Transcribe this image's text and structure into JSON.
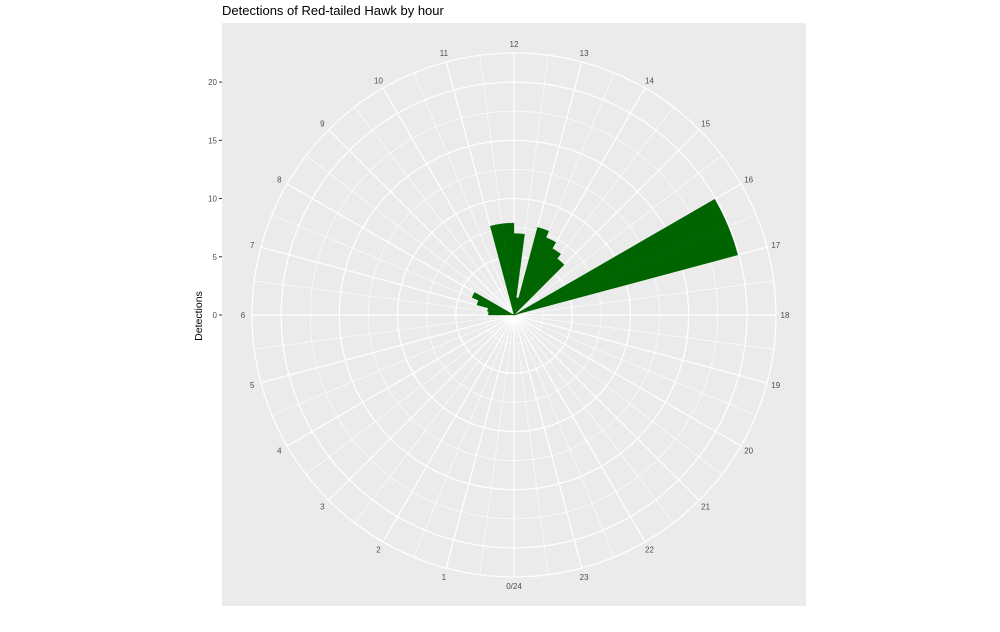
{
  "chart_data": {
    "type": "bar",
    "coordinate_system": "polar",
    "title": "Detections of Red-tailed Hawk by hour",
    "ylabel": "Detections",
    "xlabel": "",
    "y_ticks": [
      "0",
      "5",
      "10",
      "15",
      "20"
    ],
    "ylim": [
      0,
      22.5
    ],
    "grid": true,
    "angle_labels": [
      "0/24",
      "1",
      "2",
      "3",
      "4",
      "5",
      "6",
      "7",
      "8",
      "9",
      "10",
      "11",
      "12",
      "13",
      "14",
      "15",
      "16",
      "17",
      "18",
      "19",
      "20",
      "21",
      "22",
      "23"
    ],
    "bar_color": "#006400",
    "panel_background": "#ebebeb",
    "grid_color": "#ffffff",
    "hourly_bins": [
      {
        "start": 6.0,
        "end": 6.5,
        "value": 2.2
      },
      {
        "start": 6.5,
        "end": 7.0,
        "value": 0.0
      },
      {
        "start": 7.0,
        "end": 7.5,
        "value": 0.0
      },
      {
        "start": 7.5,
        "end": 8.0,
        "value": 0.0
      },
      {
        "start": 8.0,
        "end": 8.5,
        "value": 0.0
      },
      {
        "start": 8.5,
        "end": 9.0,
        "value": 0.0
      },
      {
        "start": 9.0,
        "end": 9.5,
        "value": 0.0
      },
      {
        "start": 9.5,
        "end": 10.0,
        "value": 0.0
      },
      {
        "start": 10.0,
        "end": 10.5,
        "value": 0.0
      },
      {
        "start": 10.5,
        "end": 11.0,
        "value": 0.0
      },
      {
        "start": 11.0,
        "end": 11.5,
        "value": 0.0
      },
      {
        "start": 11.5,
        "end": 12.0,
        "value": 0.0
      },
      {
        "start": 12.0,
        "end": 12.5,
        "value": 7.0
      },
      {
        "start": 12.5,
        "end": 13.0,
        "value": 0.0
      },
      {
        "start": 13.0,
        "end": 13.5,
        "value": 0.0
      },
      {
        "start": 13.5,
        "end": 14.0,
        "value": 0.0
      },
      {
        "start": 14.0,
        "end": 14.5,
        "value": 0.0
      },
      {
        "start": 14.5,
        "end": 15.0,
        "value": 0.0
      },
      {
        "start": 15.0,
        "end": 15.5,
        "value": 0.0
      },
      {
        "start": 15.5,
        "end": 16.0,
        "value": 0.0
      },
      {
        "start": 16.0,
        "end": 16.5,
        "value": 0.0
      },
      {
        "start": 16.5,
        "end": 17.0,
        "value": 0.0
      },
      {
        "start": 17.0,
        "end": 17.5,
        "value": 0.0
      },
      {
        "start": 17.5,
        "end": 18.0,
        "value": 0.0
      }
    ],
    "bins": [
      {
        "start": 6.0,
        "end": 6.5,
        "value": 2.2
      },
      {
        "start": 6.5,
        "end": 7.0,
        "value": 2.3
      },
      {
        "start": 7.0,
        "end": 7.5,
        "value": 3.3
      },
      {
        "start": 7.5,
        "end": 8.0,
        "value": 3.9
      },
      {
        "start": 8.0,
        "end": 8.5,
        "value": 0.0
      },
      {
        "start": 8.5,
        "end": 9.0,
        "value": 0.0
      },
      {
        "start": 9.0,
        "end": 9.5,
        "value": 0.0
      },
      {
        "start": 9.5,
        "end": 10.0,
        "value": 0.0
      },
      {
        "start": 10.0,
        "end": 10.5,
        "value": 0.0
      },
      {
        "start": 10.5,
        "end": 11.0,
        "value": 0.0
      },
      {
        "start": 11.0,
        "end": 11.5,
        "value": 7.9
      },
      {
        "start": 11.5,
        "end": 12.0,
        "value": 7.9
      },
      {
        "start": 12.0,
        "end": 12.5,
        "value": 7.0
      },
      {
        "start": 12.5,
        "end": 13.0,
        "value": 1.5
      },
      {
        "start": 13.0,
        "end": 13.5,
        "value": 7.8
      },
      {
        "start": 13.5,
        "end": 14.0,
        "value": 7.2
      },
      {
        "start": 14.0,
        "end": 14.5,
        "value": 6.6
      },
      {
        "start": 14.5,
        "end": 15.0,
        "value": 6.1
      },
      {
        "start": 15.0,
        "end": 15.5,
        "value": 0.0
      },
      {
        "start": 15.5,
        "end": 16.0,
        "value": 0.0
      },
      {
        "start": 16.0,
        "end": 16.5,
        "value": 19.9
      },
      {
        "start": 16.5,
        "end": 17.0,
        "value": 19.9
      },
      {
        "start": 17.0,
        "end": 17.5,
        "value": 0.3
      },
      {
        "start": 17.5,
        "end": 18.0,
        "value": 0.0
      }
    ]
  }
}
